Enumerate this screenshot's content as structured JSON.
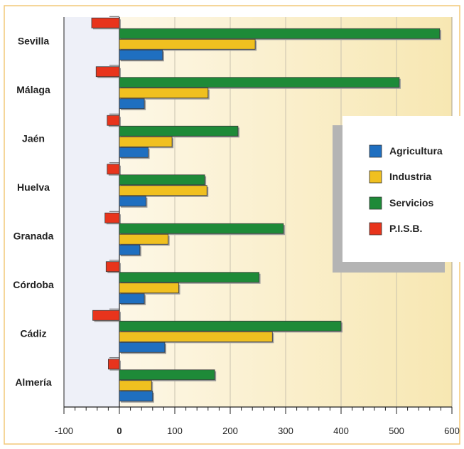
{
  "chart_data": {
    "type": "bar",
    "orientation": "horizontal",
    "categories": [
      "Sevilla",
      "Málaga",
      "Jaén",
      "Huelva",
      "Granada",
      "Córdoba",
      "Cádiz",
      "Almería"
    ],
    "series": [
      {
        "name": "Agricultura",
        "color": "#1f6fc0",
        "values": [
          78,
          45,
          52,
          48,
          37,
          45,
          82,
          60
        ]
      },
      {
        "name": "Industria",
        "color": "#f0c020",
        "values": [
          245,
          160,
          95,
          158,
          88,
          107,
          276,
          58
        ]
      },
      {
        "name": "Servicios",
        "color": "#1e8a38",
        "values": [
          578,
          505,
          214,
          154,
          296,
          252,
          400,
          172
        ]
      },
      {
        "name": "P.I.S.B.",
        "color": "#e8341c",
        "values": [
          -50,
          -42,
          -22,
          -22,
          -26,
          -24,
          -48,
          -20
        ]
      }
    ],
    "xlim": [
      -100,
      600
    ],
    "xticks": [
      "-100",
      "0",
      "100",
      "200",
      "300",
      "400",
      "500",
      "600"
    ],
    "grid": true,
    "legend_position": "right"
  }
}
